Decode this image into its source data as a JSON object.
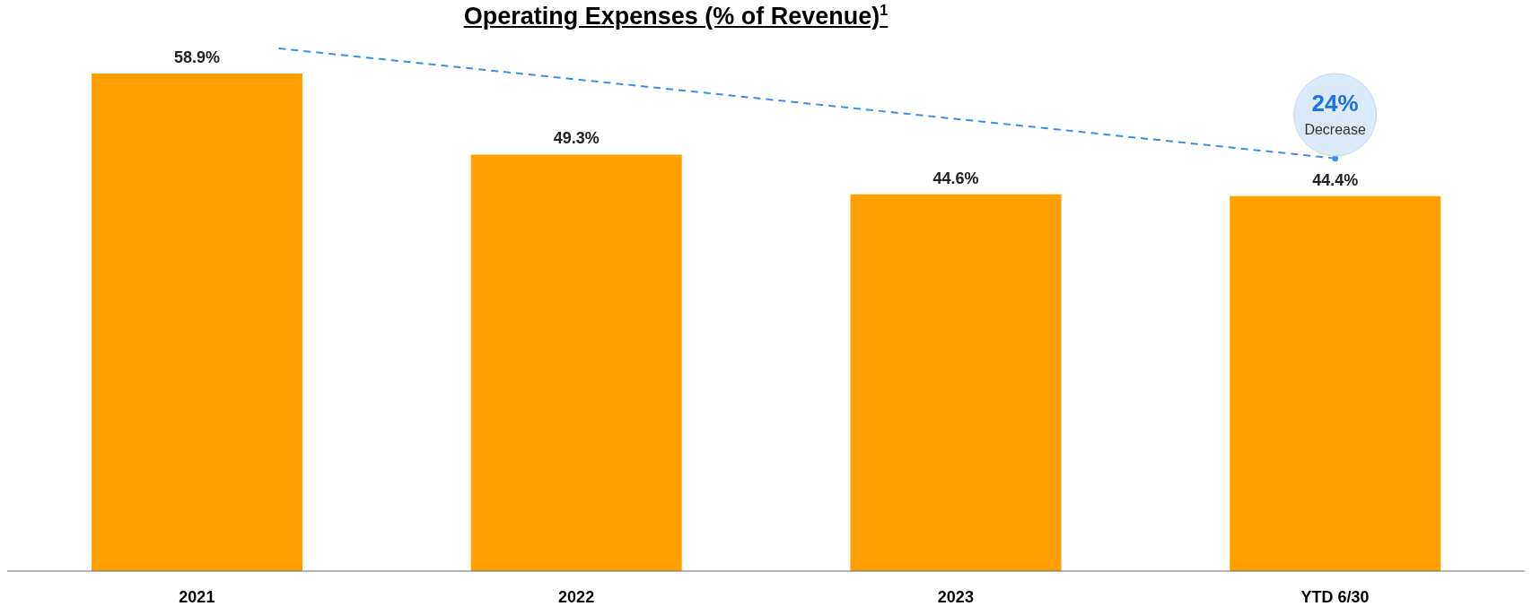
{
  "chart_data": {
    "type": "bar",
    "title": "Operating Expenses (% of Revenue)$^{1}$",
    "categories": [
      "2021",
      "2022",
      "2023",
      "YTD 6/30"
    ],
    "values": [
      58.9,
      49.3,
      44.6,
      44.4
    ],
    "value_labels": [
      "58.9%",
      "49.3%",
      "44.6%",
      "44.4%"
    ],
    "color": "#ffa000",
    "tick_labels": "x",
    "annotations": [
      "24%",
      "Decrease"
    ]
  }
}
